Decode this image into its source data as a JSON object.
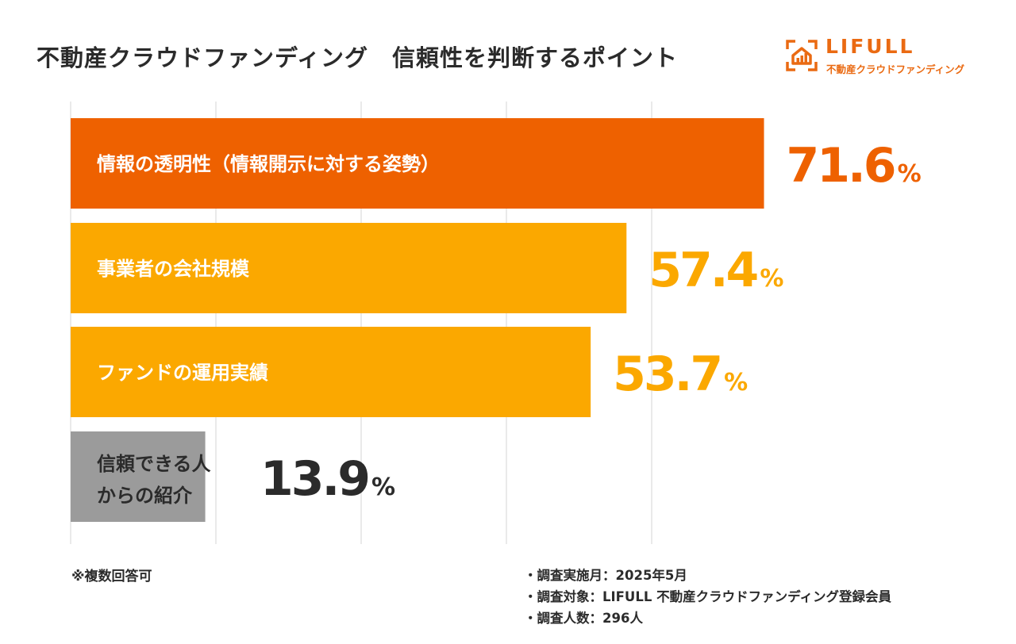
{
  "title": "不動産クラウドファンディング　信頼性を判断するポイント",
  "logo": {
    "name": "LIFULL",
    "subtitle": "不動産クラウドファンディング"
  },
  "colors": {
    "accent": "#ea6a12",
    "highlight": "#ee6100",
    "secondary": "#fba800",
    "neutral": "#9b9b9b",
    "grid": "#e4e4e4",
    "dark": "#2b2b2b"
  },
  "chart_data": {
    "type": "bar",
    "orientation": "horizontal",
    "title": "不動産クラウドファンディング　信頼性を判断するポイント",
    "unit": "%",
    "xlim": [
      0,
      60
    ],
    "grid": true,
    "categories": [
      "情報の透明性（情報開示に対する姿勢）",
      "事業者の会社規模",
      "ファンドの運用実績",
      "信頼できる人からの紹介"
    ],
    "category_lines": [
      [
        "情報の透明性（情報開示に対する姿勢）"
      ],
      [
        "事業者の会社規模"
      ],
      [
        "ファンドの運用実績"
      ],
      [
        "信頼できる人",
        "からの紹介"
      ]
    ],
    "values": [
      71.6,
      57.4,
      53.7,
      13.9
    ],
    "value_labels": [
      "71.6",
      "57.4",
      "53.7",
      "13.9"
    ],
    "bar_colors": [
      "#ee6100",
      "#fba800",
      "#fba800",
      "#9b9b9b"
    ],
    "label_colors": [
      "#ee6100",
      "#fba800",
      "#fba800",
      "#2b2b2b"
    ]
  },
  "footnote": "※複数回答可",
  "survey": {
    "period": "・調査実施月：2025年5月",
    "target": "・調査対象：LIFULL 不動産クラウドファンディング登録会員",
    "count": "・調査人数：296人"
  }
}
